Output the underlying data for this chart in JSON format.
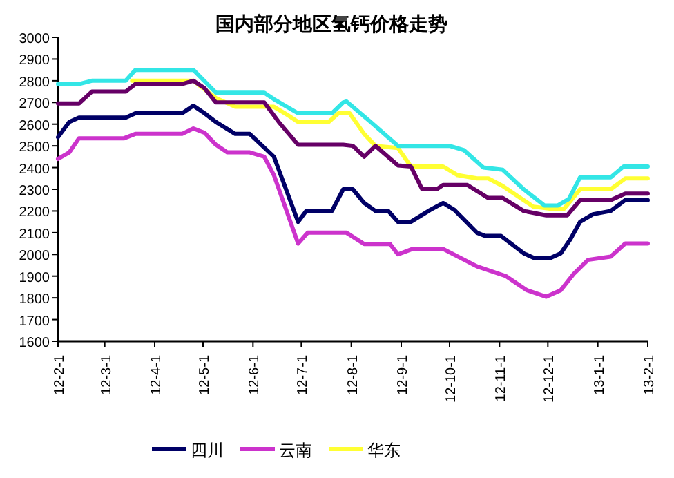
{
  "chart_data": {
    "type": "line",
    "title": "国内部分地区氢钙价格走势",
    "xlim": [
      "2012-02-01",
      "2013-02-01"
    ],
    "xticks": [
      {
        "value": "2012-02-01",
        "label": "12-2-1"
      },
      {
        "value": "2012-03-01",
        "label": "12-3-1"
      },
      {
        "value": "2012-04-01",
        "label": "12-4-1"
      },
      {
        "value": "2012-05-01",
        "label": "12-5-1"
      },
      {
        "value": "2012-06-01",
        "label": "12-6-1"
      },
      {
        "value": "2012-07-01",
        "label": "12-7-1"
      },
      {
        "value": "2012-08-01",
        "label": "12-8-1"
      },
      {
        "value": "2012-09-01",
        "label": "12-9-1"
      },
      {
        "value": "2012-10-01",
        "label": "12-10-1"
      },
      {
        "value": "2012-11-01",
        "label": "12-11-1"
      },
      {
        "value": "2012-12-01",
        "label": "12-12-1"
      },
      {
        "value": "2013-01-01",
        "label": "13-1-1"
      },
      {
        "value": "2013-02-01",
        "label": "13-2-1"
      }
    ],
    "ylim": [
      1600,
      3000
    ],
    "yticks": [
      1600,
      1700,
      1800,
      1900,
      2000,
      2100,
      2200,
      2300,
      2400,
      2500,
      2600,
      2700,
      2800,
      2900,
      3000
    ],
    "grid": false,
    "legend": "bottom",
    "marker": "none",
    "line_style": "solid",
    "series": [
      {
        "name": "四川",
        "color": "#000066",
        "x": [
          "2012-02-01",
          "2012-02-08",
          "2012-02-14",
          "2012-03-14",
          "2012-03-20",
          "2012-04-18",
          "2012-04-25",
          "2012-05-02",
          "2012-05-09",
          "2012-05-21",
          "2012-05-30",
          "2012-06-14",
          "2012-06-29",
          "2012-07-04",
          "2012-07-20",
          "2012-07-27",
          "2012-08-02",
          "2012-08-09",
          "2012-08-16",
          "2012-08-24",
          "2012-08-30",
          "2012-09-07",
          "2012-09-19",
          "2012-09-27",
          "2012-10-04",
          "2012-10-18",
          "2012-10-23",
          "2012-11-02",
          "2012-11-16",
          "2012-11-22",
          "2012-12-03",
          "2012-12-09",
          "2012-12-15",
          "2012-12-21",
          "2012-12-29",
          "2013-01-09",
          "2013-01-18",
          "2013-02-01"
        ],
        "values": [
          2540,
          2610,
          2630,
          2630,
          2650,
          2650,
          2685,
          2650,
          2610,
          2555,
          2555,
          2450,
          2150,
          2200,
          2200,
          2300,
          2300,
          2237,
          2200,
          2200,
          2150,
          2150,
          2205,
          2237,
          2205,
          2100,
          2085,
          2085,
          2005,
          1985,
          1985,
          2005,
          2070,
          2150,
          2185,
          2200,
          2250,
          2250
        ]
      },
      {
        "name": "云南",
        "color": "#cc33cc",
        "x": [
          "2012-02-01",
          "2012-02-08",
          "2012-02-14",
          "2012-03-13",
          "2012-03-20",
          "2012-04-18",
          "2012-04-25",
          "2012-05-02",
          "2012-05-09",
          "2012-05-16",
          "2012-05-30",
          "2012-06-08",
          "2012-06-14",
          "2012-06-29",
          "2012-07-05",
          "2012-07-29",
          "2012-08-09",
          "2012-08-25",
          "2012-08-30",
          "2012-09-08",
          "2012-09-27",
          "2012-10-18",
          "2012-11-05",
          "2012-11-18",
          "2012-11-30",
          "2012-12-09",
          "2012-12-17",
          "2012-12-26",
          "2013-01-09",
          "2013-01-18",
          "2013-02-01"
        ],
        "values": [
          2440,
          2470,
          2535,
          2535,
          2555,
          2555,
          2580,
          2560,
          2505,
          2470,
          2470,
          2450,
          2365,
          2050,
          2100,
          2100,
          2048,
          2048,
          2000,
          2025,
          2025,
          1945,
          1900,
          1835,
          1805,
          1835,
          1910,
          1975,
          1990,
          2050,
          2050
        ]
      },
      {
        "name": "华东",
        "color": "#ffff33",
        "x": [
          "2012-03-18",
          "2012-04-18",
          "2012-04-25",
          "2012-05-09",
          "2012-05-21",
          "2012-06-14",
          "2012-06-23",
          "2012-06-29",
          "2012-07-18",
          "2012-07-24",
          "2012-07-31",
          "2012-08-09",
          "2012-08-16",
          "2012-08-30",
          "2012-09-07",
          "2012-09-27",
          "2012-10-06",
          "2012-10-18",
          "2012-10-25",
          "2012-11-03",
          "2012-11-22",
          "2012-12-03",
          "2012-12-11",
          "2012-12-21",
          "2013-01-09",
          "2013-01-18",
          "2013-02-01"
        ],
        "values": [
          2800,
          2800,
          2800,
          2720,
          2680,
          2680,
          2640,
          2610,
          2610,
          2650,
          2650,
          2555,
          2500,
          2490,
          2405,
          2405,
          2365,
          2350,
          2350,
          2315,
          2220,
          2210,
          2210,
          2300,
          2300,
          2350,
          2350
        ]
      },
      {
        "color": "#660066",
        "x": [
          "2012-02-01",
          "2012-02-14",
          "2012-02-22",
          "2012-03-14",
          "2012-03-20",
          "2012-04-18",
          "2012-04-25",
          "2012-05-02",
          "2012-05-09",
          "2012-05-30",
          "2012-06-08",
          "2012-06-17",
          "2012-06-29",
          "2012-07-27",
          "2012-08-02",
          "2012-08-09",
          "2012-08-16",
          "2012-08-30",
          "2012-09-07",
          "2012-09-14",
          "2012-09-23",
          "2012-09-27",
          "2012-10-12",
          "2012-10-25",
          "2012-11-03",
          "2012-11-16",
          "2012-11-30",
          "2012-12-13",
          "2012-12-21",
          "2013-01-09",
          "2013-01-18",
          "2013-02-01"
        ],
        "values": [
          2695,
          2695,
          2750,
          2750,
          2785,
          2785,
          2800,
          2765,
          2700,
          2700,
          2700,
          2610,
          2505,
          2505,
          2500,
          2450,
          2500,
          2410,
          2405,
          2300,
          2300,
          2320,
          2320,
          2260,
          2260,
          2200,
          2180,
          2180,
          2250,
          2250,
          2280,
          2280
        ]
      },
      {
        "color": "#33e6e6",
        "x": [
          "2012-02-01",
          "2012-02-14",
          "2012-02-22",
          "2012-03-14",
          "2012-03-20",
          "2012-04-25",
          "2012-05-09",
          "2012-05-30",
          "2012-06-08",
          "2012-06-14",
          "2012-06-29",
          "2012-07-20",
          "2012-07-27",
          "2012-07-29",
          "2012-08-13",
          "2012-08-30",
          "2012-10-01",
          "2012-10-10",
          "2012-10-22",
          "2012-11-03",
          "2012-11-16",
          "2012-11-29",
          "2012-12-07",
          "2012-12-14",
          "2012-12-21",
          "2013-01-09",
          "2013-01-17",
          "2013-02-01"
        ],
        "values": [
          2785,
          2785,
          2800,
          2800,
          2850,
          2850,
          2745,
          2745,
          2745,
          2715,
          2650,
          2650,
          2700,
          2705,
          2610,
          2500,
          2500,
          2480,
          2400,
          2390,
          2300,
          2225,
          2225,
          2255,
          2355,
          2355,
          2405,
          2405
        ]
      }
    ]
  }
}
